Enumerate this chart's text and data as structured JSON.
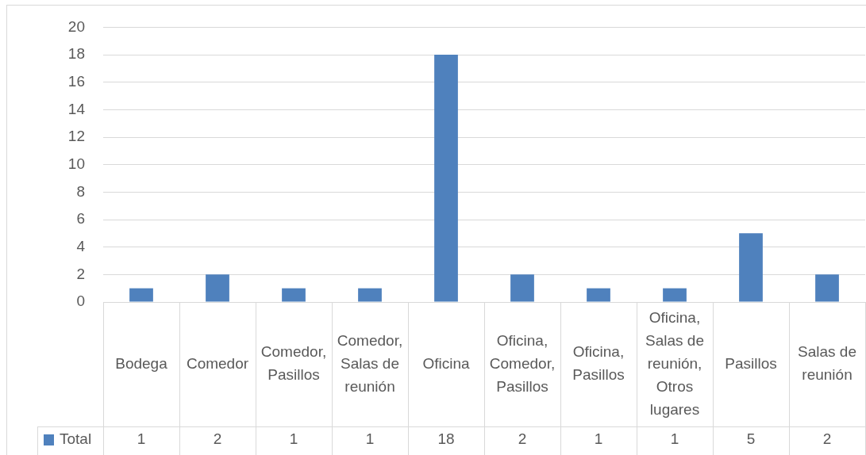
{
  "chart_data": {
    "type": "bar",
    "categories": [
      "Bodega",
      "Comedor",
      "Comedor, Pasillos",
      "Comedor, Salas de reunión",
      "Oficina",
      "Oficina, Comedor, Pasillos",
      "Oficina, Pasillos",
      "Oficina, Salas de reunión, Otros lugares",
      "Pasillos",
      "Salas de reunión"
    ],
    "series": [
      {
        "name": "Total",
        "color": "#4f81bd",
        "values": [
          1,
          2,
          1,
          1,
          18,
          2,
          1,
          1,
          5,
          2
        ]
      }
    ],
    "ylim": [
      0,
      20
    ],
    "yticks": [
      0,
      2,
      4,
      6,
      8,
      10,
      12,
      14,
      16,
      18,
      20
    ],
    "grid": "y",
    "legend": "bottom left",
    "data_labels": true
  }
}
